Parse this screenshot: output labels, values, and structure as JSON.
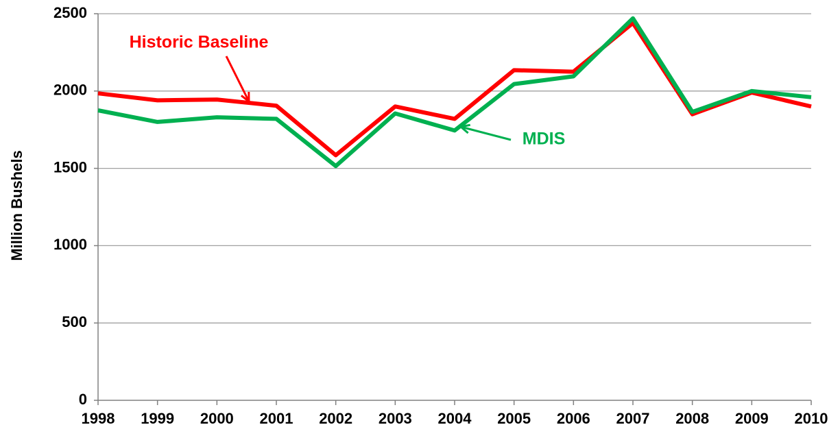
{
  "chart_data": {
    "type": "line",
    "y_label": "Million Bushels",
    "x": [
      1998,
      1999,
      2000,
      2001,
      2002,
      2003,
      2004,
      2005,
      2006,
      2007,
      2008,
      2009,
      2010
    ],
    "xlim": [
      1998,
      2010
    ],
    "xticks": [
      1998,
      1999,
      2000,
      2001,
      2002,
      2003,
      2004,
      2005,
      2006,
      2007,
      2008,
      2009,
      2010
    ],
    "ylim": [
      0,
      2500
    ],
    "yticks": [
      0,
      500,
      1000,
      1500,
      2000,
      2500
    ],
    "grid": true,
    "series": [
      {
        "name": "Historic Baseline",
        "color": "#ff0000",
        "values": [
          1985,
          1940,
          1945,
          1905,
          1585,
          1900,
          1820,
          2135,
          2125,
          2440,
          1850,
          1990,
          1900
        ]
      },
      {
        "name": "MDIS",
        "color": "#00b050",
        "values": [
          1875,
          1800,
          1830,
          1820,
          1515,
          1855,
          1745,
          2045,
          2095,
          2470,
          1865,
          2000,
          1960
        ]
      }
    ]
  }
}
